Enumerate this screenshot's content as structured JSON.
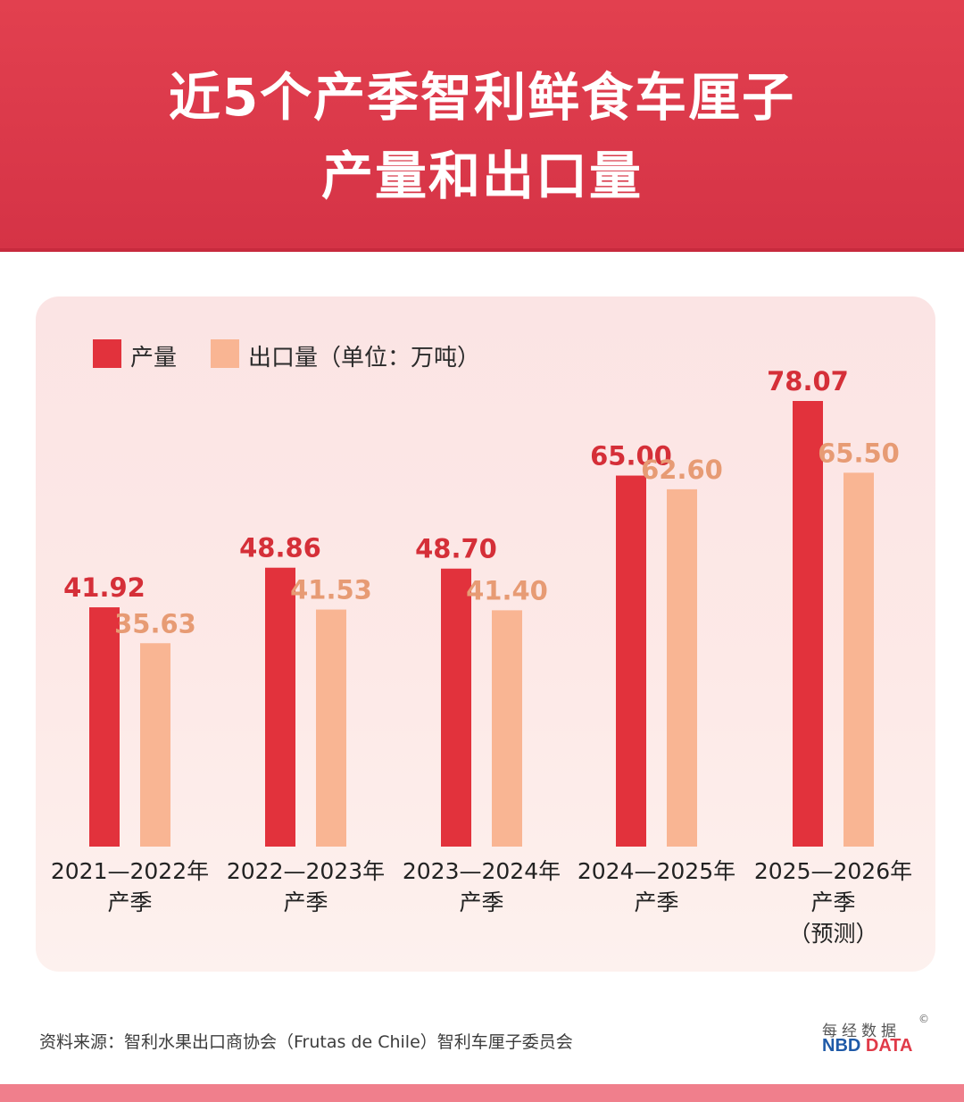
{
  "header": {
    "title_line1": "近5个产季智利鲜食车厘子",
    "title_line2": "产量和出口量",
    "color": "#d53346"
  },
  "legend": {
    "production": "产量",
    "export": "出口量（单位：万吨）"
  },
  "chart_data": {
    "type": "bar",
    "title": "近5个产季智利鲜食车厘子产量和出口量",
    "unit": "万吨",
    "categories": [
      [
        "2021—2022年",
        "产季"
      ],
      [
        "2022—2023年",
        "产季"
      ],
      [
        "2023—2024年",
        "产季"
      ],
      [
        "2024—2025年",
        "产季"
      ],
      [
        "2025—2026年",
        "产季",
        "（预测）"
      ]
    ],
    "series": [
      {
        "name": "产量",
        "values": [
          41.92,
          48.86,
          48.7,
          65.0,
          78.07
        ],
        "labels": [
          "41.92",
          "48.86",
          "48.70",
          "65.00",
          "78.07"
        ],
        "color": "#e2323c",
        "label_color": "#d52f38"
      },
      {
        "name": "出口量",
        "values": [
          35.63,
          41.53,
          41.4,
          62.6,
          65.5
        ],
        "labels": [
          "35.63",
          "41.53",
          "41.40",
          "62.60",
          "65.50"
        ],
        "color": "#f9b593",
        "label_color": "#e79b74"
      }
    ],
    "ylim": [
      0,
      78.07
    ],
    "grid": false,
    "legend_position": "top-left"
  },
  "footer": {
    "source": "资料来源：智利水果出口商协会（Frutas de Chile）智利车厘子委员会",
    "logo_cn": "每经数据",
    "logo_copyright": "©",
    "logo_en_a": "NBD",
    "logo_en_b": "DATA"
  }
}
